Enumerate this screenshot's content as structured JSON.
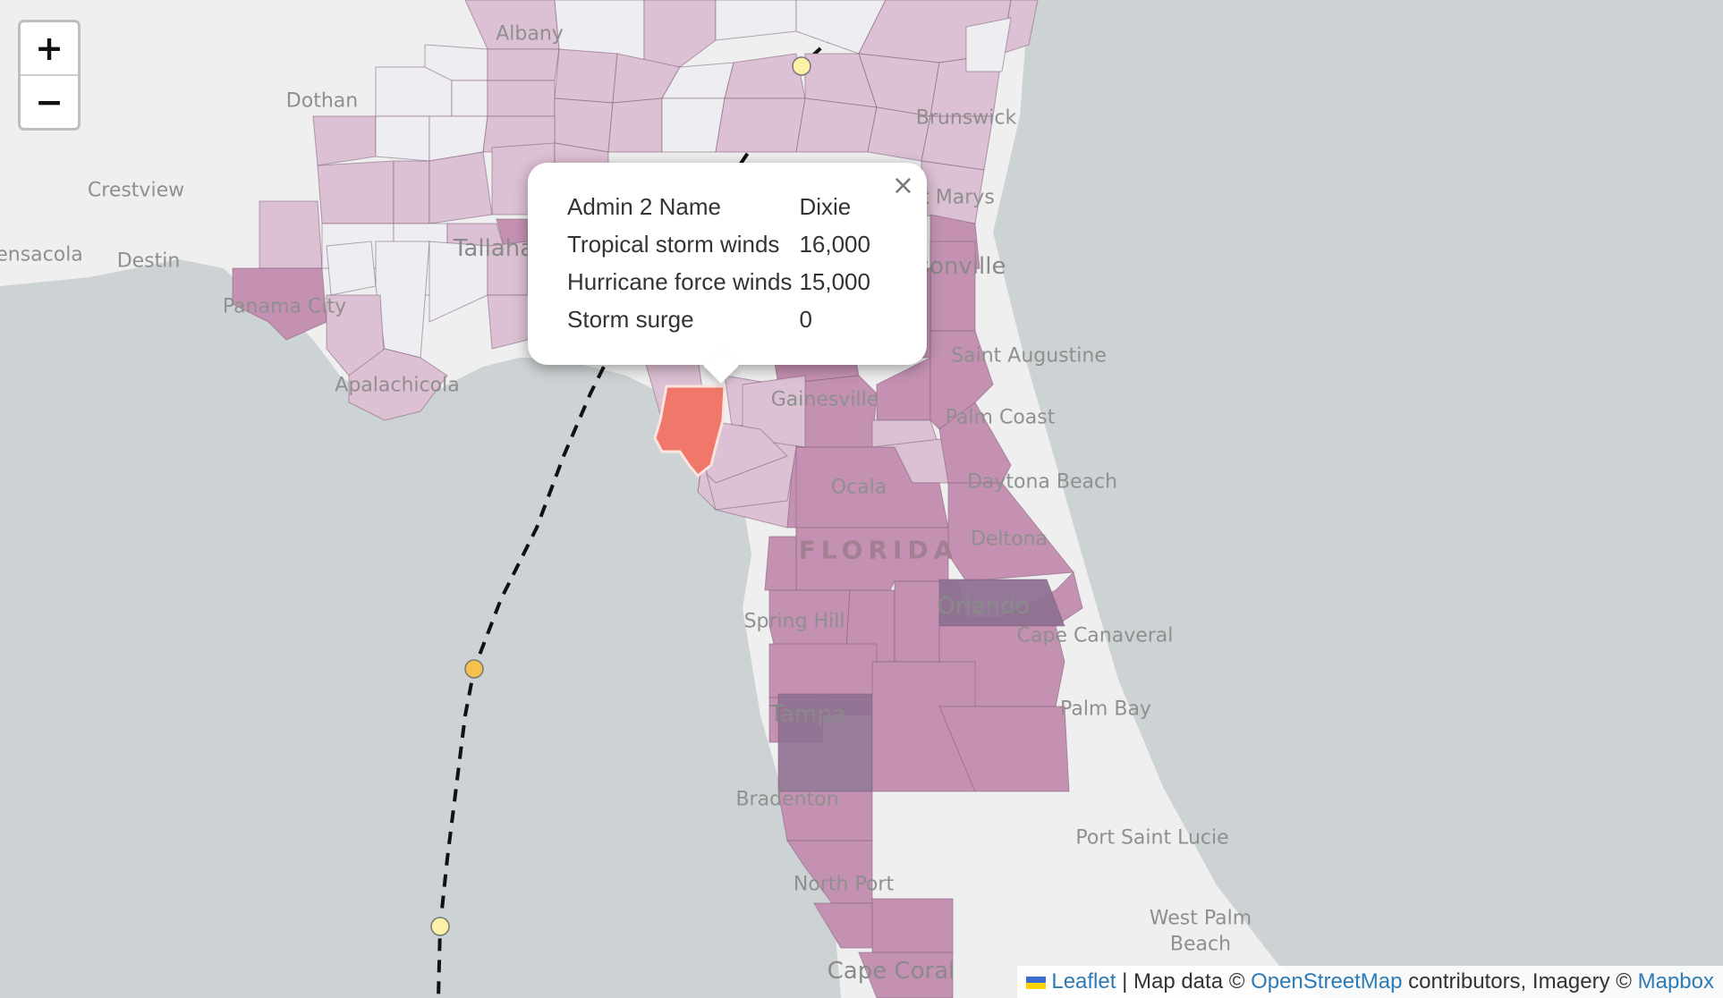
{
  "map": {
    "colors": {
      "water": "#cdd3d4",
      "land": "#efefef",
      "county_low": "#dcc0d3",
      "county_mid": "#c591b3",
      "county_high": "#8e7191",
      "county_selected": "#f0786a",
      "track_dot_yellow": "#fdf1a8",
      "track_dot_orange": "#f6c04c"
    },
    "labels": {
      "dothan": "Dothan",
      "albany": "Albany",
      "crestview": "Crestview",
      "pensacola": "ensacola",
      "destin": "Destin",
      "tallahassee": "Tallaha",
      "panama_city": "Panama City",
      "apalachicola": "Apalachicola",
      "brunswick": "Brunswick",
      "st_marys": "St Marys",
      "jacksonville": "sonville",
      "st_augustine": "Saint Augustine",
      "palm_coast": "Palm Coast",
      "gainesville": "Gainesville",
      "ocala": "Ocala",
      "daytona": "Daytona Beach",
      "florida": "FLORIDA",
      "deltona": "Deltona",
      "orlando": "Orlando",
      "cape_canaveral": "Cape Canaveral",
      "spring_hill": "Spring Hill",
      "palm_bay": "Palm Bay",
      "tampa": "Tampa",
      "bradenton": "Bradenton",
      "port_saint_lucie": "Port Saint Lucie",
      "north_port": "North Port",
      "west_palm": "West Palm",
      "beach": "Beach",
      "cape_coral": "Cape Coral"
    }
  },
  "zoom": {
    "in": "+",
    "out": "−"
  },
  "popup": {
    "close": "×",
    "rows": [
      {
        "key": "Admin 2 Name",
        "value": "Dixie"
      },
      {
        "key": "Tropical storm winds",
        "value": "16,000"
      },
      {
        "key": "Hurricane force winds",
        "value": "15,000"
      },
      {
        "key": "Storm surge",
        "value": "0"
      }
    ]
  },
  "attribution": {
    "leaflet": "Leaflet",
    "sep1": " | Map data © ",
    "osm": "OpenStreetMap",
    "mid": " contributors, Imagery © ",
    "mapbox": "Mapbox"
  }
}
